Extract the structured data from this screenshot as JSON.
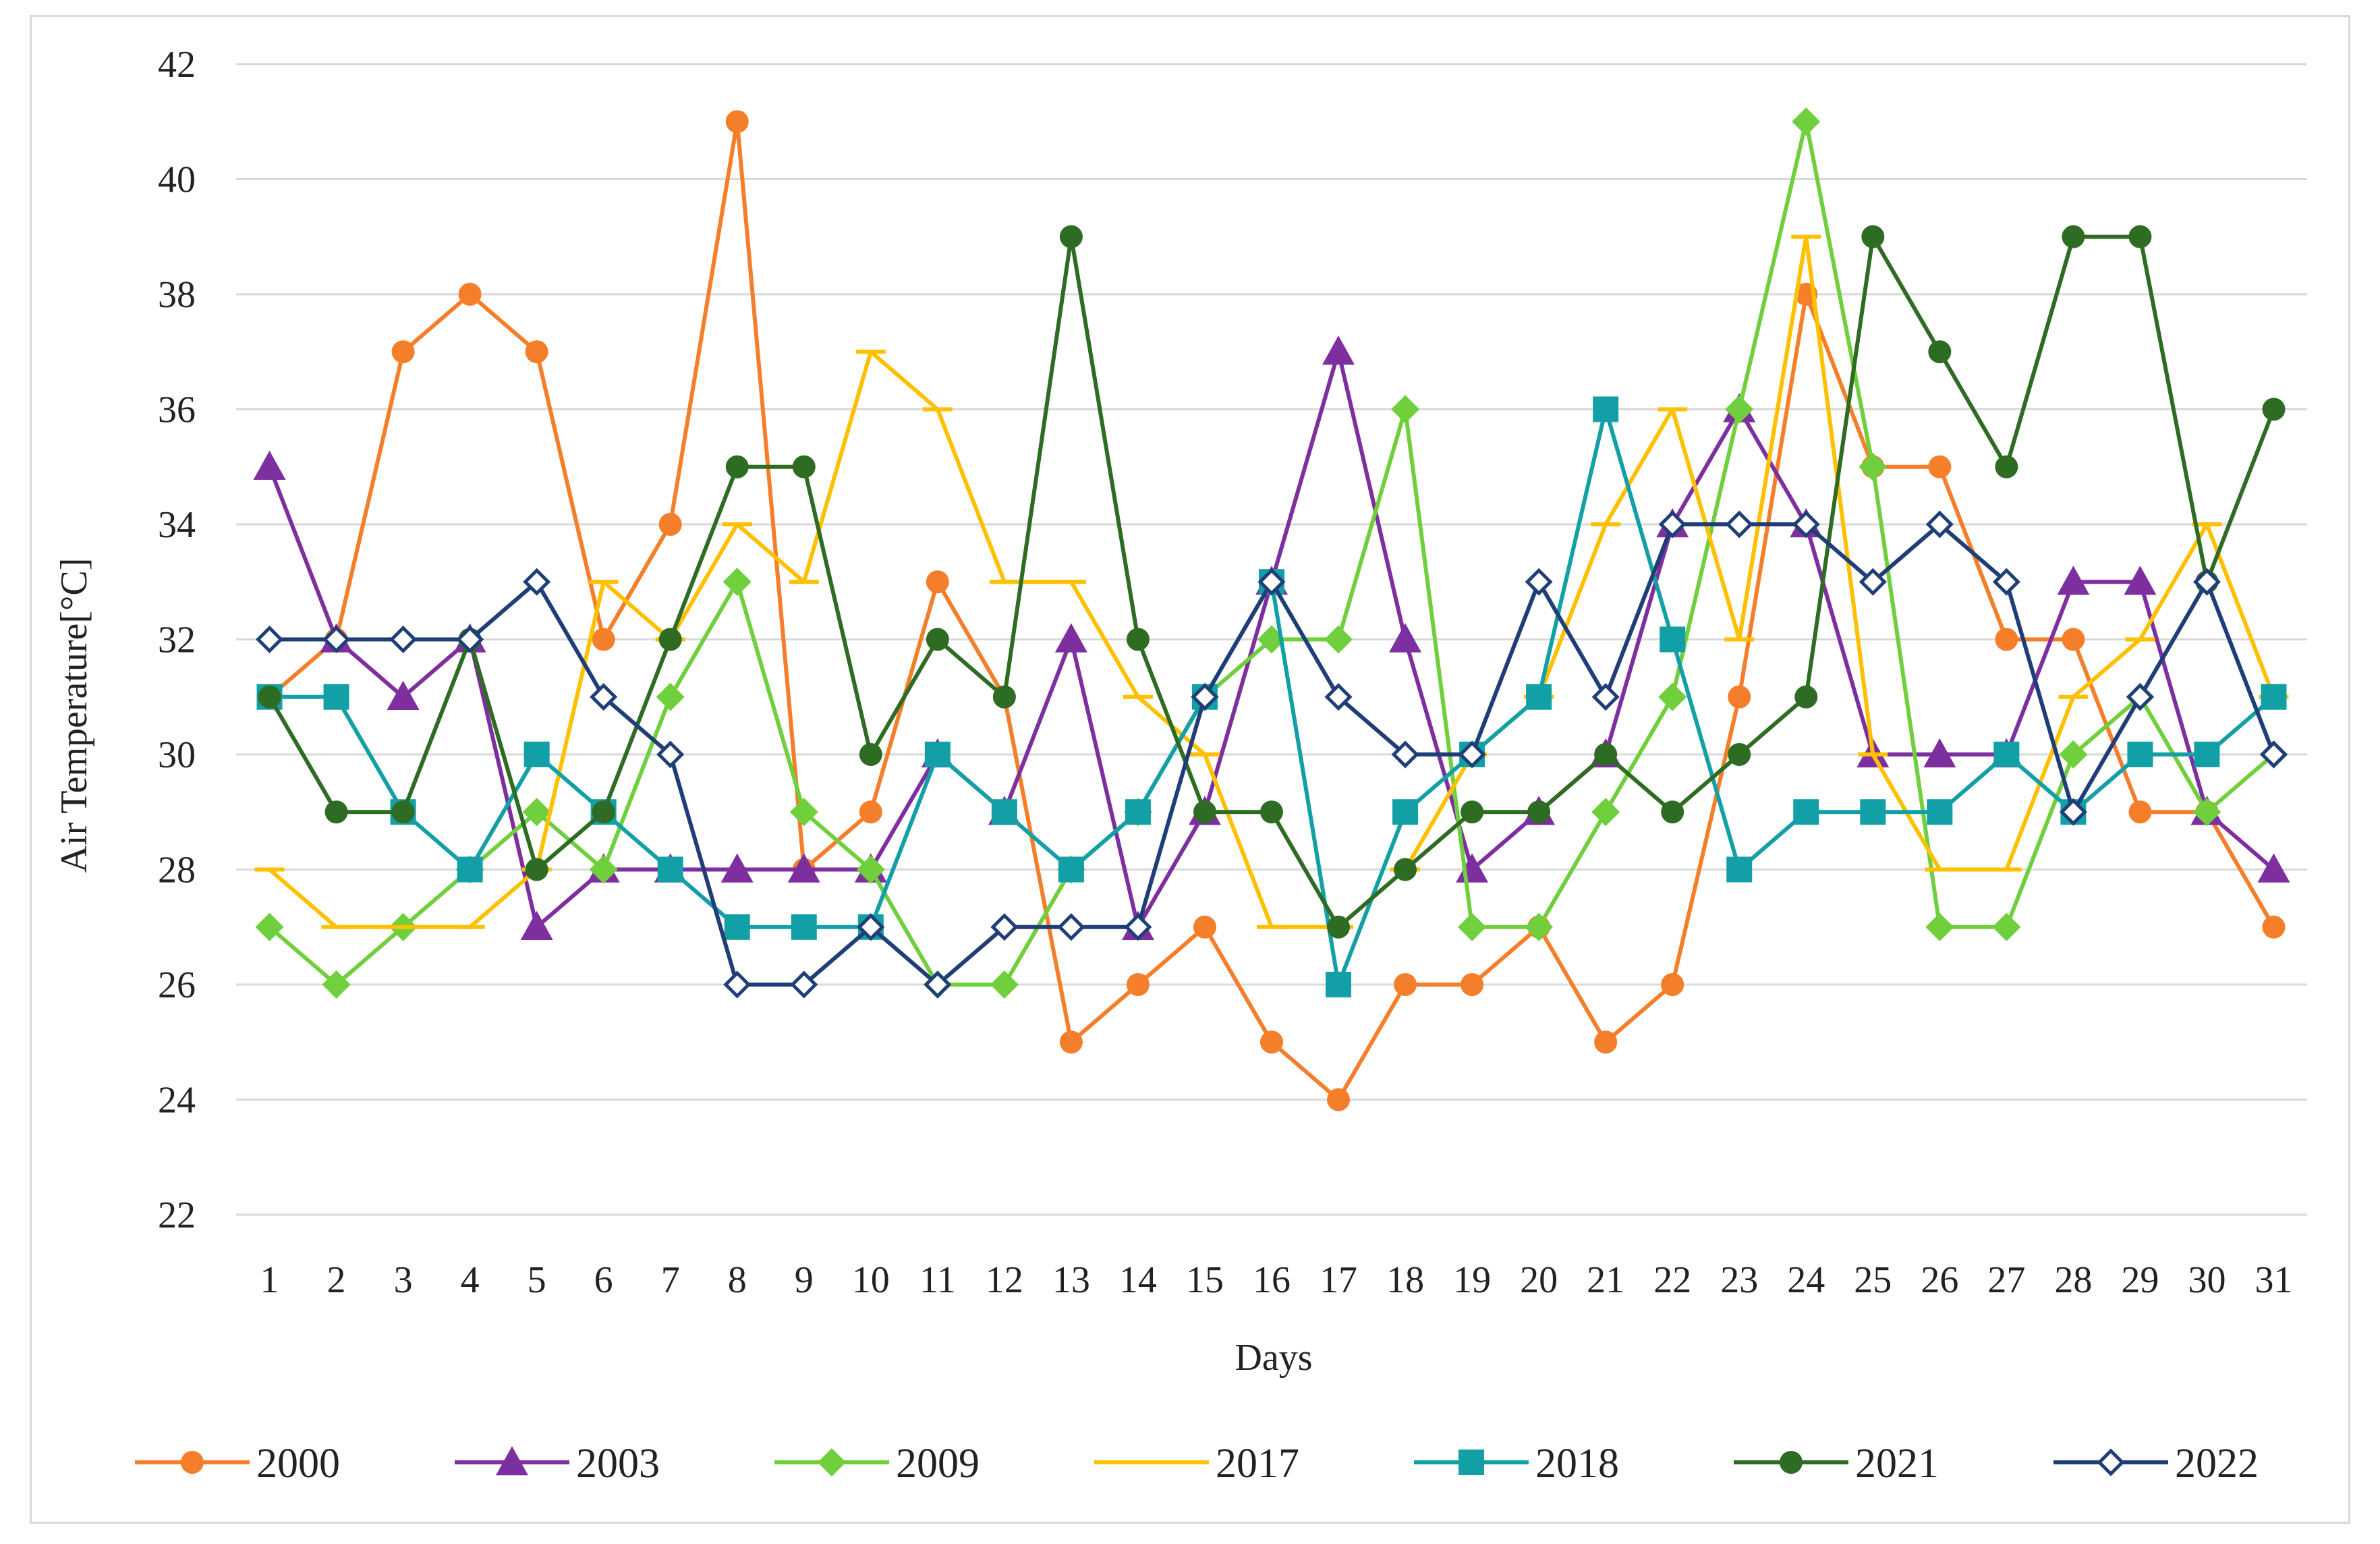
{
  "chart_data": {
    "type": "line",
    "xlabel": "Days",
    "ylabel": "Air Temperature[°C]",
    "ylim": [
      22,
      42
    ],
    "yticks": [
      22,
      24,
      26,
      28,
      30,
      32,
      34,
      36,
      38,
      40,
      42
    ],
    "grid": "horizontal",
    "legend_position": "bottom",
    "categories": [
      "1",
      "2",
      "3",
      "4",
      "5",
      "6",
      "7",
      "8",
      "9",
      "10",
      "11",
      "12",
      "13",
      "14",
      "15",
      "16",
      "17",
      "18",
      "19",
      "20",
      "21",
      "22",
      "23",
      "24",
      "25",
      "26",
      "27",
      "28",
      "29",
      "30",
      "31"
    ],
    "series": [
      {
        "name": "2000",
        "color": "#f47e2a",
        "marker": "circle",
        "values": [
          31,
          32,
          37,
          38,
          37,
          32,
          34,
          41,
          28,
          29,
          33,
          31,
          25,
          26,
          27,
          25,
          24,
          26,
          26,
          27,
          25,
          26,
          31,
          38,
          35,
          35,
          32,
          32,
          29,
          29,
          27
        ]
      },
      {
        "name": "2003",
        "color": "#7e2f9f",
        "marker": "triangle",
        "values": [
          35,
          32,
          31,
          32,
          27,
          28,
          28,
          28,
          28,
          28,
          30,
          29,
          32,
          27,
          29,
          33,
          37,
          32,
          28,
          29,
          30,
          34,
          36,
          34,
          30,
          30,
          30,
          33,
          33,
          29,
          28
        ]
      },
      {
        "name": "2009",
        "color": "#6fcf3c",
        "marker": "diamond",
        "values": [
          27,
          26,
          27,
          28,
          29,
          28,
          31,
          33,
          29,
          28,
          26,
          26,
          28,
          29,
          31,
          32,
          32,
          36,
          27,
          27,
          29,
          31,
          36,
          41,
          35,
          27,
          27,
          30,
          31,
          29,
          30
        ]
      },
      {
        "name": "2017",
        "color": "#ffc000",
        "marker": "dash",
        "values": [
          28,
          27,
          27,
          27,
          28,
          33,
          32,
          34,
          33,
          37,
          36,
          33,
          33,
          31,
          30,
          27,
          27,
          28,
          30,
          31,
          34,
          36,
          32,
          39,
          30,
          28,
          28,
          31,
          32,
          34,
          31
        ]
      },
      {
        "name": "2018",
        "color": "#12a0a6",
        "marker": "square",
        "values": [
          31,
          31,
          29,
          28,
          30,
          29,
          28,
          27,
          27,
          27,
          30,
          29,
          28,
          29,
          31,
          33,
          26,
          29,
          30,
          31,
          36,
          32,
          28,
          29,
          29,
          29,
          30,
          29,
          30,
          30,
          31
        ]
      },
      {
        "name": "2021",
        "color": "#2e6b23",
        "marker": "circle",
        "values": [
          31,
          29,
          29,
          32,
          28,
          29,
          32,
          35,
          35,
          30,
          32,
          31,
          39,
          32,
          29,
          29,
          27,
          28,
          29,
          29,
          30,
          29,
          30,
          31,
          39,
          37,
          35,
          39,
          39,
          33,
          36
        ]
      },
      {
        "name": "2022",
        "color": "#1f3e78",
        "marker": "open-diamond",
        "values": [
          32,
          32,
          32,
          32,
          33,
          31,
          30,
          26,
          26,
          27,
          26,
          27,
          27,
          27,
          31,
          33,
          31,
          30,
          30,
          33,
          31,
          34,
          34,
          34,
          33,
          34,
          33,
          29,
          31,
          33,
          30
        ]
      }
    ]
  }
}
